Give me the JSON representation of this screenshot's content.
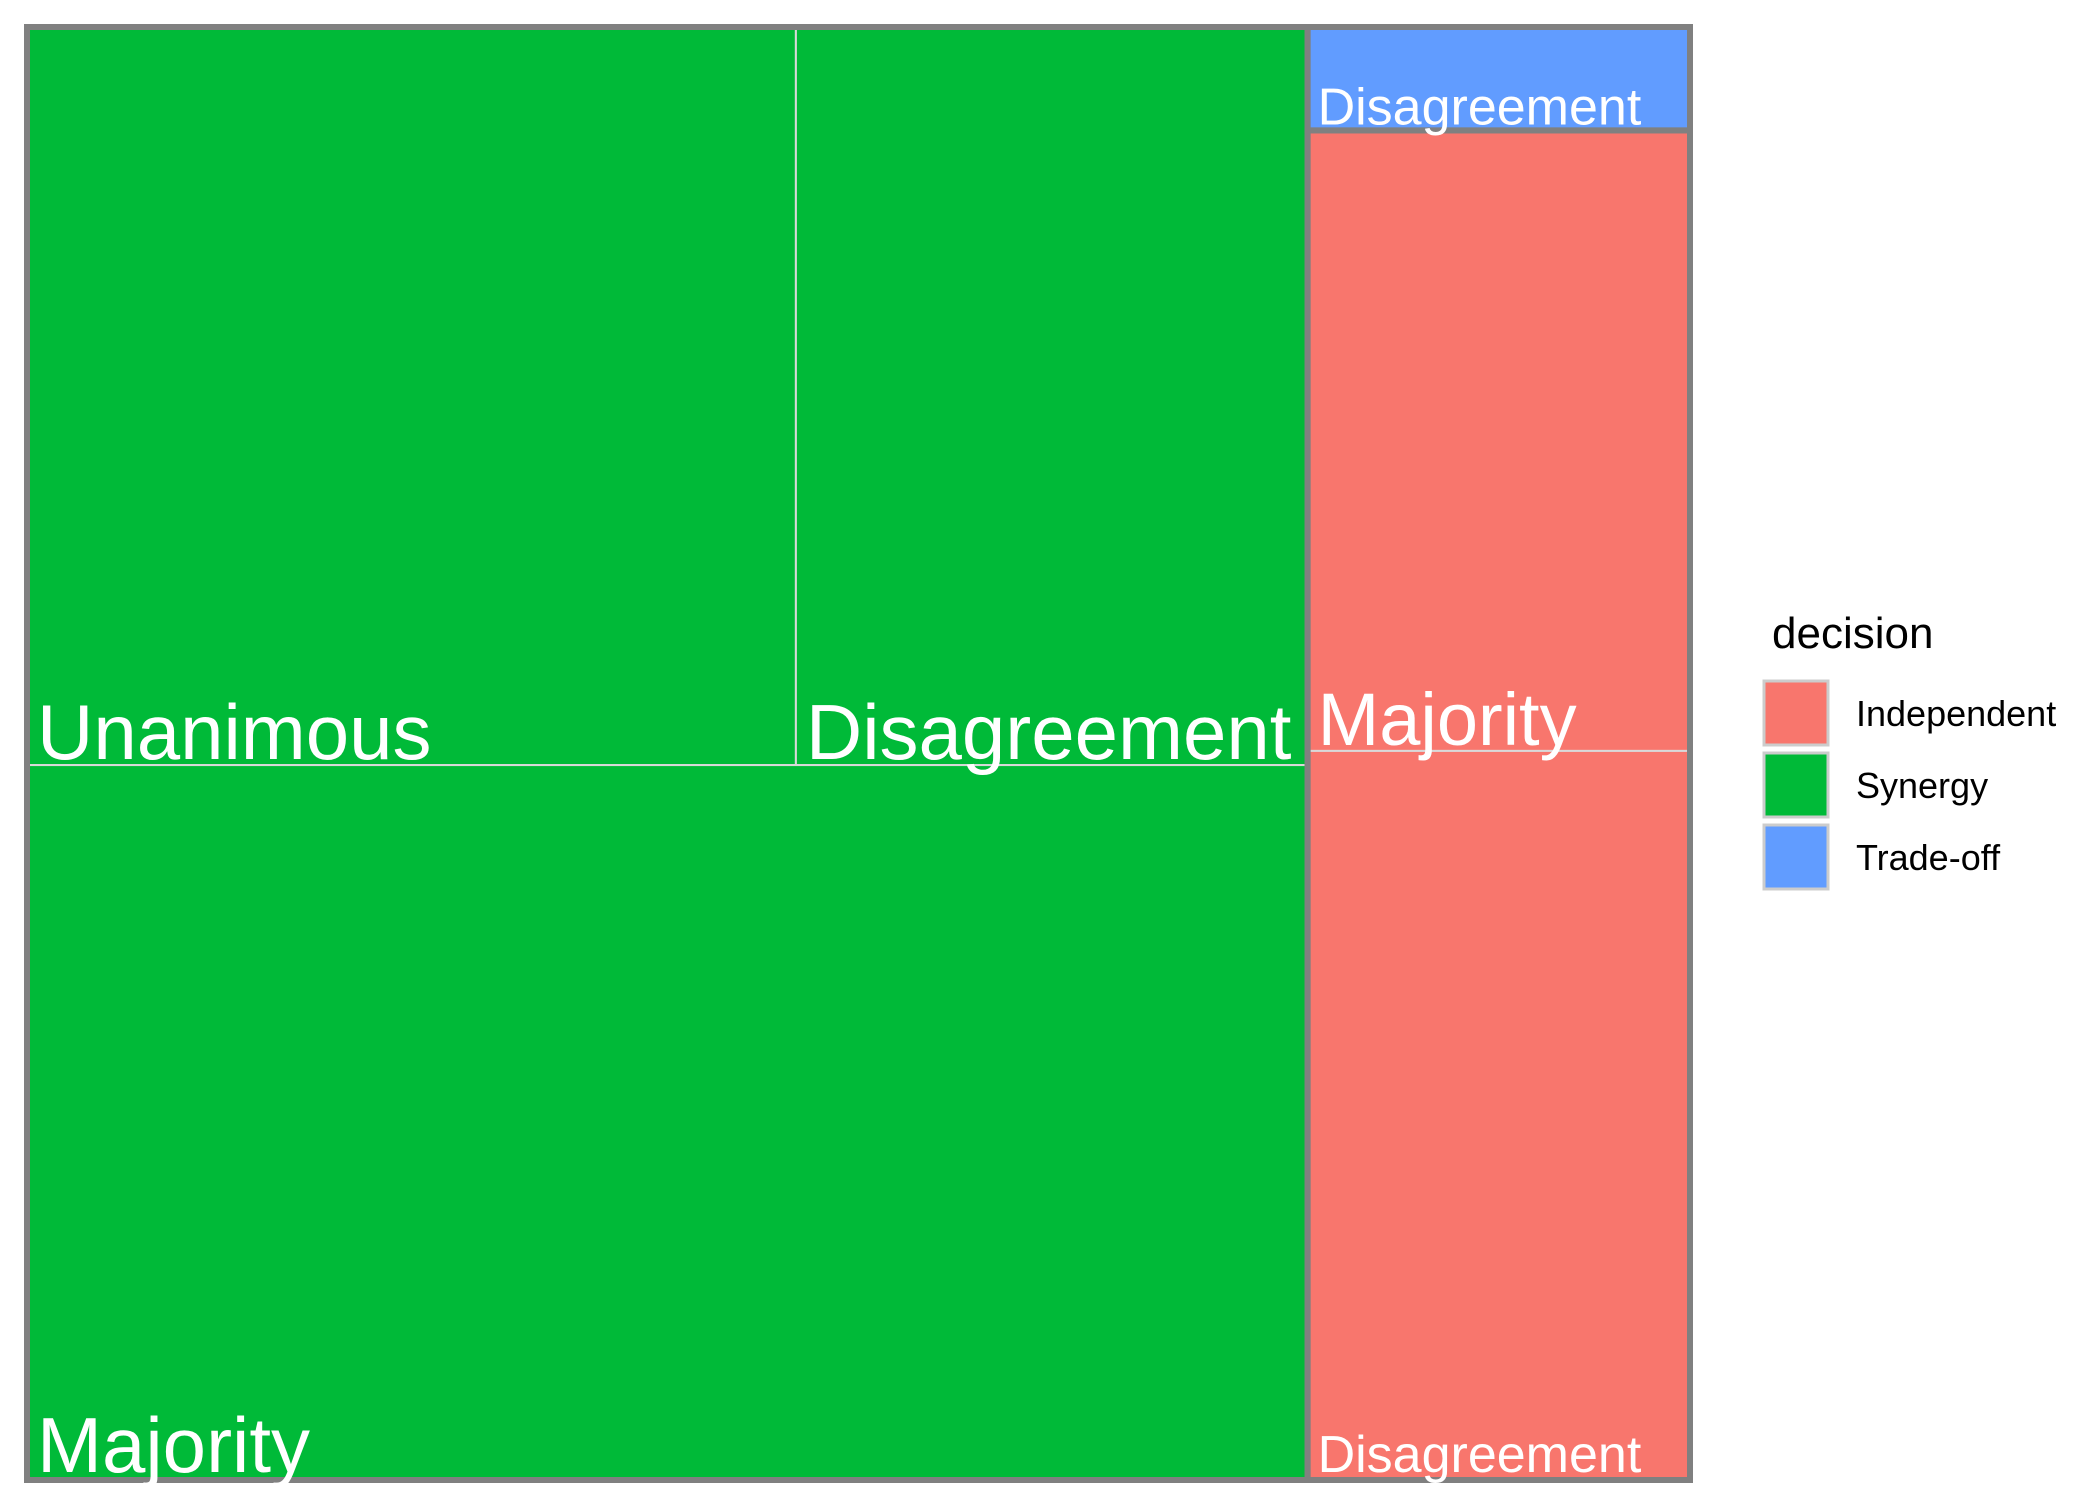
{
  "chart_data": {
    "type": "treemap",
    "legend": {
      "title": "decision",
      "position": "right",
      "entries": [
        {
          "name": "Independent",
          "color": "#F8766D"
        },
        {
          "name": "Synergy",
          "color": "#00BA38"
        },
        {
          "name": "Trade-off",
          "color": "#619CFF"
        }
      ]
    },
    "groups": [
      {
        "decision": "Synergy",
        "color": "#00BA38",
        "tiles": [
          {
            "label": "Unanimous",
            "value": 28.7
          },
          {
            "label": "Disagreement",
            "value": 19.1
          },
          {
            "label": "Majority",
            "value": 46.3
          }
        ]
      },
      {
        "decision": "Independent",
        "color": "#F8766D",
        "tiles": [
          {
            "label": "Majority",
            "value": 12.0
          },
          {
            "label": "Disagreement",
            "value": 14.1
          }
        ]
      },
      {
        "decision": "Trade-off",
        "color": "#619CFF",
        "tiles": [
          {
            "label": "Disagreement",
            "value": 2.0
          }
        ]
      }
    ]
  }
}
